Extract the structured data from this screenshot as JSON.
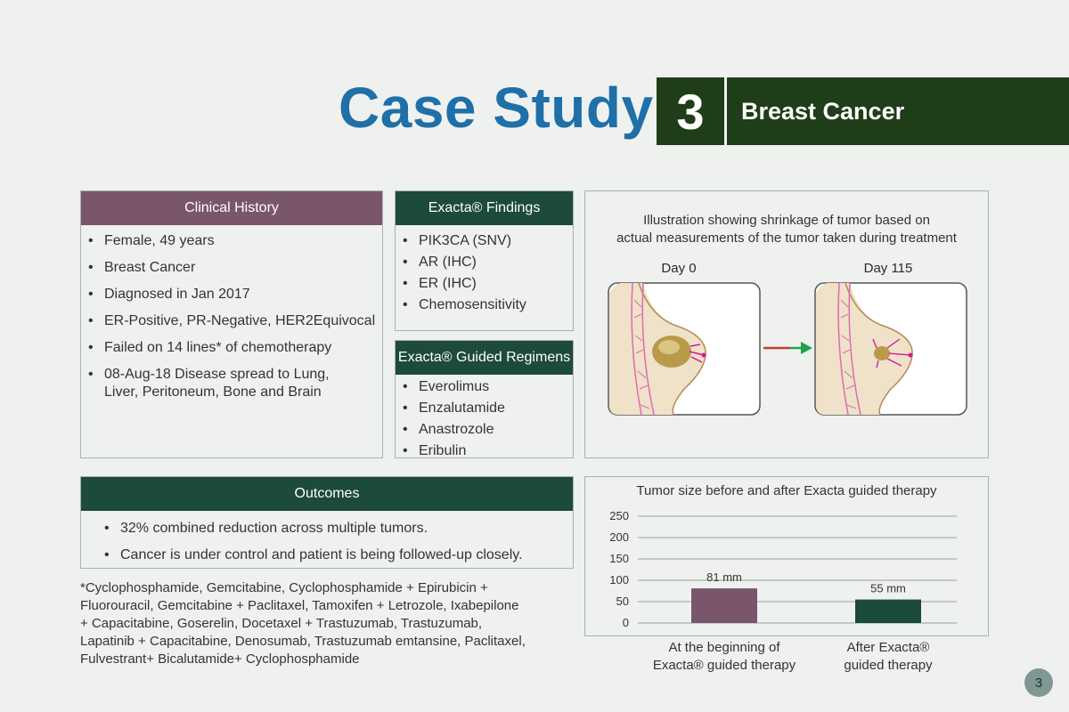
{
  "header": {
    "title": "Case Study",
    "number": "3",
    "subtitle": "Breast Cancer"
  },
  "clinical_history": {
    "heading": "Clinical History",
    "items": [
      "Female, 49 years",
      "Breast Cancer",
      "Diagnosed in Jan 2017",
      "ER-Positive, PR-Negative, HER2Equivocal",
      "Failed on 14 lines* of chemotherapy",
      "08-Aug-18 Disease spread to Lung, Liver, Peritoneum, Bone and Brain"
    ]
  },
  "findings": {
    "heading": "Exacta® Findings",
    "items": [
      "PIK3CA (SNV)",
      "AR (IHC)",
      "ER (IHC)",
      "Chemosensitivity"
    ]
  },
  "regimens": {
    "heading": "Exacta® Guided Regimens",
    "items": [
      "Everolimus",
      "Enzalutamide",
      "Anastrozole",
      "Eribulin"
    ]
  },
  "illustration": {
    "caption_line1": "Illustration showing shrinkage of tumor based on",
    "caption_line2": "actual measurements of the tumor taken during treatment",
    "day_before": "Day 0",
    "day_after": "Day 115"
  },
  "outcomes": {
    "heading": "Outcomes",
    "items": [
      "32% combined reduction across multiple tumors.",
      "Cancer is under control and patient is being followed-up closely."
    ]
  },
  "footnote": {
    "lines": [
      "*Cyclophosphamide, Gemcitabine, Cyclophosphamide + Epirubicin +",
      "Fluorouracil, Gemcitabine + Paclitaxel, Tamoxifen + Letrozole, Ixabepilone",
      "+ Capacitabine, Goserelin, Docetaxel + Trastuzumab, Trastuzumab,",
      "Lapatinib + Capacitabine, Denosumab, Trastuzumab emtansine, Paclitaxel,",
      "Fulvestrant+ Bicalutamide+ Cyclophosphamide"
    ]
  },
  "chart_data": {
    "type": "bar",
    "title": "Tumor size before and after Exacta guided therapy",
    "categories": [
      [
        "At the beginning of",
        "Exacta® guided therapy"
      ],
      [
        "After Exacta®",
        "guided therapy"
      ]
    ],
    "values": [
      81,
      55
    ],
    "value_labels": [
      "81 mm",
      "55 mm"
    ],
    "yticks": [
      0,
      50,
      100,
      150,
      200,
      250
    ],
    "ylim": [
      0,
      250
    ],
    "colors": [
      "#7a566d",
      "#1c4a3b"
    ],
    "grid": true
  },
  "page_number": "3",
  "colors": {
    "title_blue": "#1f6fa8",
    "dark_green": "#1f3d18",
    "panel_green": "#1c4a3b",
    "panel_purple": "#7a566d",
    "arrow_red": "#b5432d",
    "arrow_green": "#22a24a"
  }
}
